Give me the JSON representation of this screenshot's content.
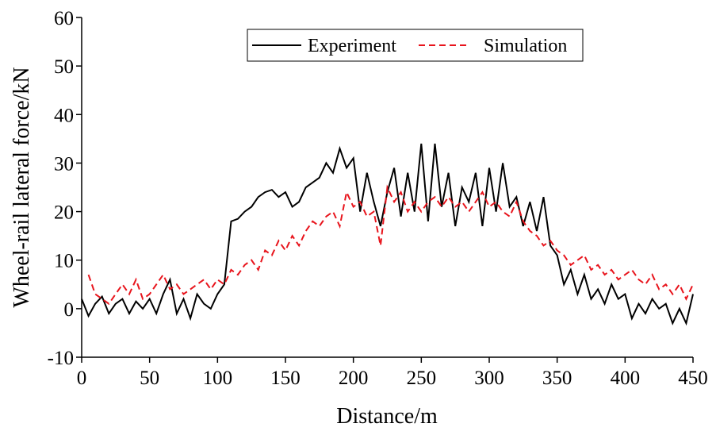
{
  "chart_data": {
    "type": "line",
    "xlabel": "Distance/m",
    "ylabel": "Wheel-rail lateral force/kN",
    "xlim": [
      0,
      450
    ],
    "xticks": [
      0,
      50,
      100,
      150,
      200,
      250,
      300,
      350,
      400,
      450
    ],
    "ylim": [
      -10,
      60
    ],
    "yticks": [
      -10,
      0,
      10,
      20,
      30,
      40,
      50,
      60
    ],
    "legend": "top-right",
    "series": [
      {
        "name": "Experiment",
        "color": "#000000",
        "dash": "solid",
        "x": [
          0,
          5,
          10,
          15,
          20,
          25,
          30,
          35,
          40,
          45,
          50,
          55,
          60,
          65,
          70,
          75,
          80,
          85,
          90,
          95,
          100,
          105,
          110,
          115,
          120,
          125,
          130,
          135,
          140,
          145,
          150,
          155,
          160,
          165,
          170,
          175,
          180,
          185,
          190,
          195,
          200,
          205,
          210,
          215,
          220,
          225,
          230,
          235,
          240,
          245,
          250,
          255,
          260,
          265,
          270,
          275,
          280,
          285,
          290,
          295,
          300,
          305,
          310,
          315,
          320,
          325,
          330,
          335,
          340,
          345,
          350,
          355,
          360,
          365,
          370,
          375,
          380,
          385,
          390,
          395,
          400,
          405,
          410,
          415,
          420,
          425,
          430,
          435,
          440,
          445,
          450
        ],
        "values": [
          2,
          -1.5,
          1,
          2.5,
          -1,
          1,
          2,
          -1,
          1.5,
          0,
          2,
          -1,
          3,
          6,
          -1,
          2,
          -2,
          3,
          1,
          0,
          3,
          5,
          18,
          18.5,
          20,
          21,
          23,
          24,
          24.5,
          23,
          24,
          21,
          22,
          25,
          26,
          27,
          30,
          28,
          33,
          29,
          31,
          20,
          28,
          22,
          17,
          24,
          29,
          19,
          28,
          20,
          34,
          18,
          34,
          21,
          28,
          17,
          25,
          22,
          28,
          17,
          29,
          20,
          30,
          21,
          23,
          17,
          22,
          16,
          23,
          13,
          11,
          5,
          8,
          3,
          7,
          2,
          4,
          1,
          5,
          2,
          3,
          -2,
          1,
          -1,
          2,
          0,
          1,
          -3,
          0,
          -3,
          3
        ]
      },
      {
        "name": "Simulation",
        "color": "#e8141c",
        "dash": "dashed",
        "x": [
          5,
          10,
          15,
          20,
          25,
          30,
          35,
          40,
          45,
          50,
          55,
          60,
          65,
          70,
          75,
          80,
          85,
          90,
          95,
          100,
          105,
          110,
          115,
          120,
          125,
          130,
          135,
          140,
          145,
          150,
          155,
          160,
          165,
          170,
          175,
          180,
          185,
          190,
          195,
          200,
          205,
          210,
          215,
          220,
          225,
          230,
          235,
          240,
          245,
          250,
          255,
          260,
          265,
          270,
          275,
          280,
          285,
          290,
          295,
          300,
          305,
          310,
          315,
          320,
          325,
          330,
          335,
          340,
          345,
          350,
          355,
          360,
          365,
          370,
          375,
          380,
          385,
          390,
          395,
          400,
          405,
          410,
          415,
          420,
          425,
          430,
          435,
          440,
          445,
          450
        ],
        "values": [
          7,
          3,
          2,
          1,
          3,
          5,
          3,
          6,
          2,
          3,
          5,
          7,
          4,
          5,
          3,
          4,
          5,
          6,
          4,
          6,
          5,
          8,
          7,
          9,
          10,
          8,
          12,
          11,
          14,
          12,
          15,
          13,
          16,
          18,
          17,
          19,
          20,
          17,
          24,
          21,
          22,
          19,
          20,
          13,
          25,
          22,
          24,
          20,
          22,
          20,
          22,
          23,
          21,
          23,
          21,
          22,
          20,
          22,
          24,
          21,
          22,
          20,
          19,
          22,
          18,
          16,
          15,
          13,
          14,
          12,
          11,
          9,
          10,
          11,
          8,
          9,
          7,
          8,
          6,
          7,
          8,
          6,
          5,
          7,
          4,
          5,
          3,
          5,
          2,
          5
        ]
      }
    ]
  }
}
